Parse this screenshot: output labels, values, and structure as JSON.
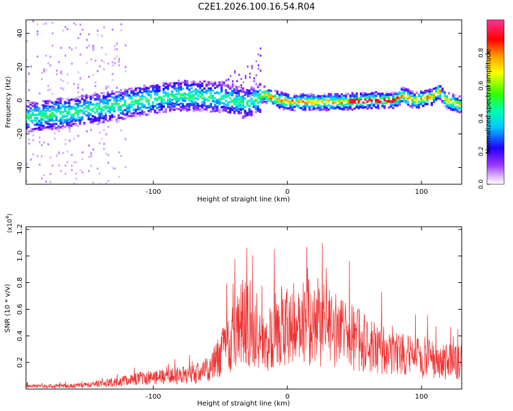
{
  "figure": {
    "title": "C2E1.2026.100.16.54.R04"
  },
  "chart_data": [
    {
      "type": "heatmap",
      "name": "spectrogram",
      "xlabel": "Height of straight line (km)",
      "ylabel": "Frequency (Hz)",
      "xlim": [
        -195,
        130
      ],
      "ylim": [
        -50,
        48
      ],
      "xticks": [
        -100,
        0,
        100
      ],
      "yticks": [
        -40,
        -20,
        0,
        20,
        40
      ],
      "trend": [
        {
          "x": -195,
          "y": -10
        },
        {
          "x": -160,
          "y": -7
        },
        {
          "x": -130,
          "y": -3
        },
        {
          "x": -100,
          "y": 1
        },
        {
          "x": -80,
          "y": 3
        },
        {
          "x": -50,
          "y": 2
        },
        {
          "x": -30,
          "y": -2
        },
        {
          "x": -20,
          "y": 2
        },
        {
          "x": -18,
          "y": 4
        },
        {
          "x": -10,
          "y": 1
        },
        {
          "x": 0,
          "y": -1
        },
        {
          "x": 20,
          "y": -1
        },
        {
          "x": 40,
          "y": -1
        },
        {
          "x": 60,
          "y": 0
        },
        {
          "x": 80,
          "y": 0
        },
        {
          "x": 85,
          "y": 3
        },
        {
          "x": 95,
          "y": 0
        },
        {
          "x": 108,
          "y": 2
        },
        {
          "x": 113,
          "y": 6
        },
        {
          "x": 118,
          "y": 0
        },
        {
          "x": 130,
          "y": -3
        }
      ],
      "colorbar": {
        "label": "Normalized spectral amplitude",
        "range": [
          0,
          1
        ],
        "ticks": [
          0.0,
          0.2,
          0.4,
          0.6,
          0.8
        ]
      }
    },
    {
      "type": "line",
      "name": "snr",
      "xlabel": "Height of straight line (km)",
      "ylabel": "SNR (10 * v/v)",
      "y_multiplier": "(x10",
      "y_multiplier_exp": "4",
      "y_multiplier_close": ")",
      "xlim": [
        -195,
        130
      ],
      "ylim": [
        0,
        1.22
      ],
      "xticks": [
        -100,
        0,
        100
      ],
      "yticks": [
        0.2,
        0.4,
        0.6,
        0.8,
        1.0,
        1.2
      ],
      "series_color": "#ee3333",
      "envelope": [
        {
          "x": -195,
          "y": 0.03
        },
        {
          "x": -170,
          "y": 0.03
        },
        {
          "x": -150,
          "y": 0.04
        },
        {
          "x": -130,
          "y": 0.07
        },
        {
          "x": -110,
          "y": 0.11
        },
        {
          "x": -90,
          "y": 0.13
        },
        {
          "x": -70,
          "y": 0.15
        },
        {
          "x": -60,
          "y": 0.2
        },
        {
          "x": -50,
          "y": 0.35
        },
        {
          "x": -45,
          "y": 0.45
        },
        {
          "x": -40,
          "y": 0.55
        },
        {
          "x": -33,
          "y": 0.7
        },
        {
          "x": -28,
          "y": 0.65
        },
        {
          "x": -20,
          "y": 0.45
        },
        {
          "x": -15,
          "y": 0.5
        },
        {
          "x": -10,
          "y": 0.6
        },
        {
          "x": 0,
          "y": 0.72
        },
        {
          "x": 10,
          "y": 0.68
        },
        {
          "x": 20,
          "y": 0.7
        },
        {
          "x": 30,
          "y": 0.65
        },
        {
          "x": 40,
          "y": 0.58
        },
        {
          "x": 50,
          "y": 0.52
        },
        {
          "x": 60,
          "y": 0.46
        },
        {
          "x": 70,
          "y": 0.42
        },
        {
          "x": 80,
          "y": 0.38
        },
        {
          "x": 90,
          "y": 0.34
        },
        {
          "x": 100,
          "y": 0.32
        },
        {
          "x": 110,
          "y": 0.3
        },
        {
          "x": 120,
          "y": 0.28
        },
        {
          "x": 130,
          "y": 0.28
        }
      ]
    }
  ],
  "colors": {
    "axis": "#000000",
    "snr_line": "#ee3333",
    "colormap": [
      "#ffffff",
      "#9933ff",
      "#3300ff",
      "#00ffff",
      "#00ff00",
      "#ffff00",
      "#ff9900",
      "#ff0000",
      "#ff33aa"
    ]
  }
}
